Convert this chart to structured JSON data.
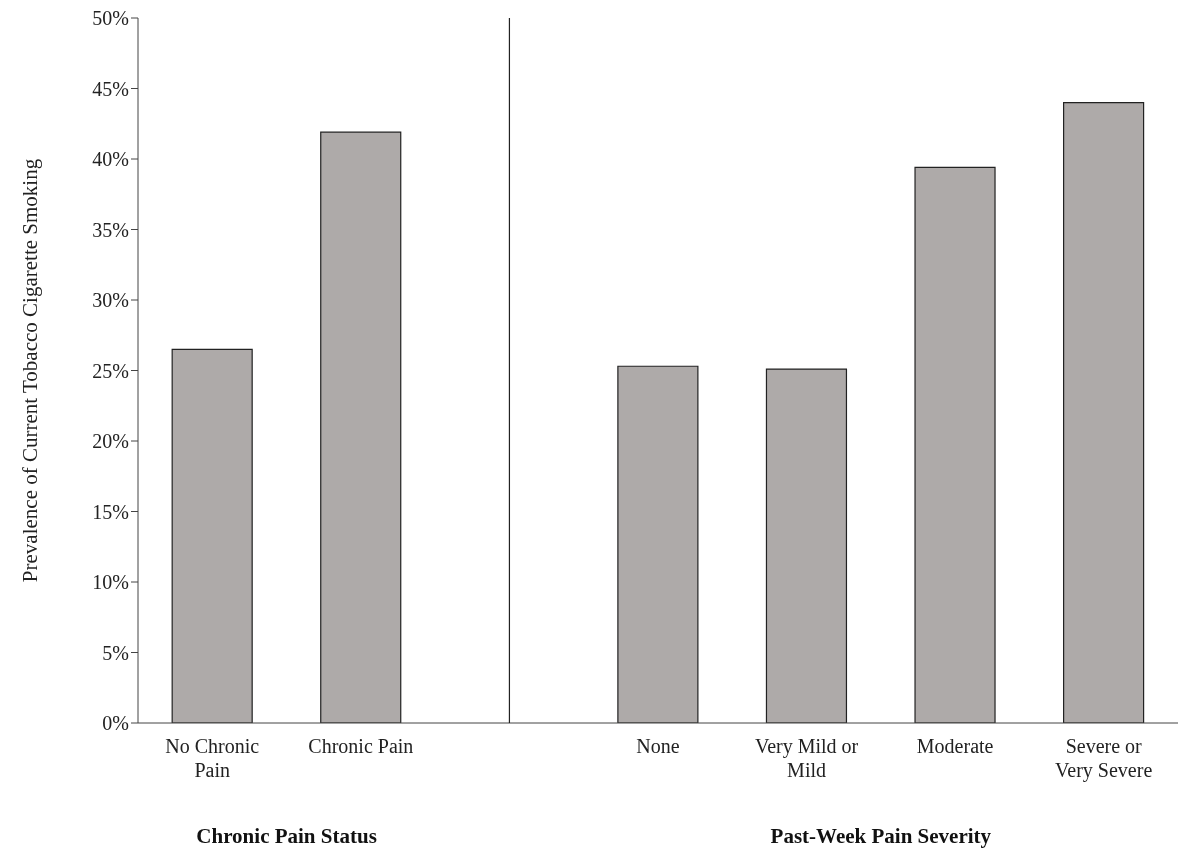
{
  "chart_data": {
    "type": "bar",
    "ylabel": "Prevalence of Current Tobacco Cigarette Smoking",
    "categories": [
      "No Chronic Pain",
      "Chronic Pain",
      null,
      "None",
      "Very Mild or Mild",
      "Moderate",
      "Severe or Very Severe"
    ],
    "values": [
      26.5,
      41.9,
      null,
      25.3,
      25.1,
      39.4,
      44.0
    ],
    "color": "#aeaaa9",
    "ylim": [
      0,
      50
    ],
    "yticks": [
      {
        "value": 0,
        "label": "0%"
      },
      {
        "value": 5,
        "label": "5%"
      },
      {
        "value": 10,
        "label": "10%"
      },
      {
        "value": 15,
        "label": "15%"
      },
      {
        "value": 20,
        "label": "20%"
      },
      {
        "value": 25,
        "label": "25%"
      },
      {
        "value": 30,
        "label": "30%"
      },
      {
        "value": 35,
        "label": "35%"
      },
      {
        "value": 40,
        "label": "40%"
      },
      {
        "value": 45,
        "label": "45%"
      },
      {
        "value": 50,
        "label": "50%"
      }
    ],
    "legend": false,
    "annotations": [
      "Chronic Pain Status",
      "Past-Week Pain Severity"
    ]
  }
}
